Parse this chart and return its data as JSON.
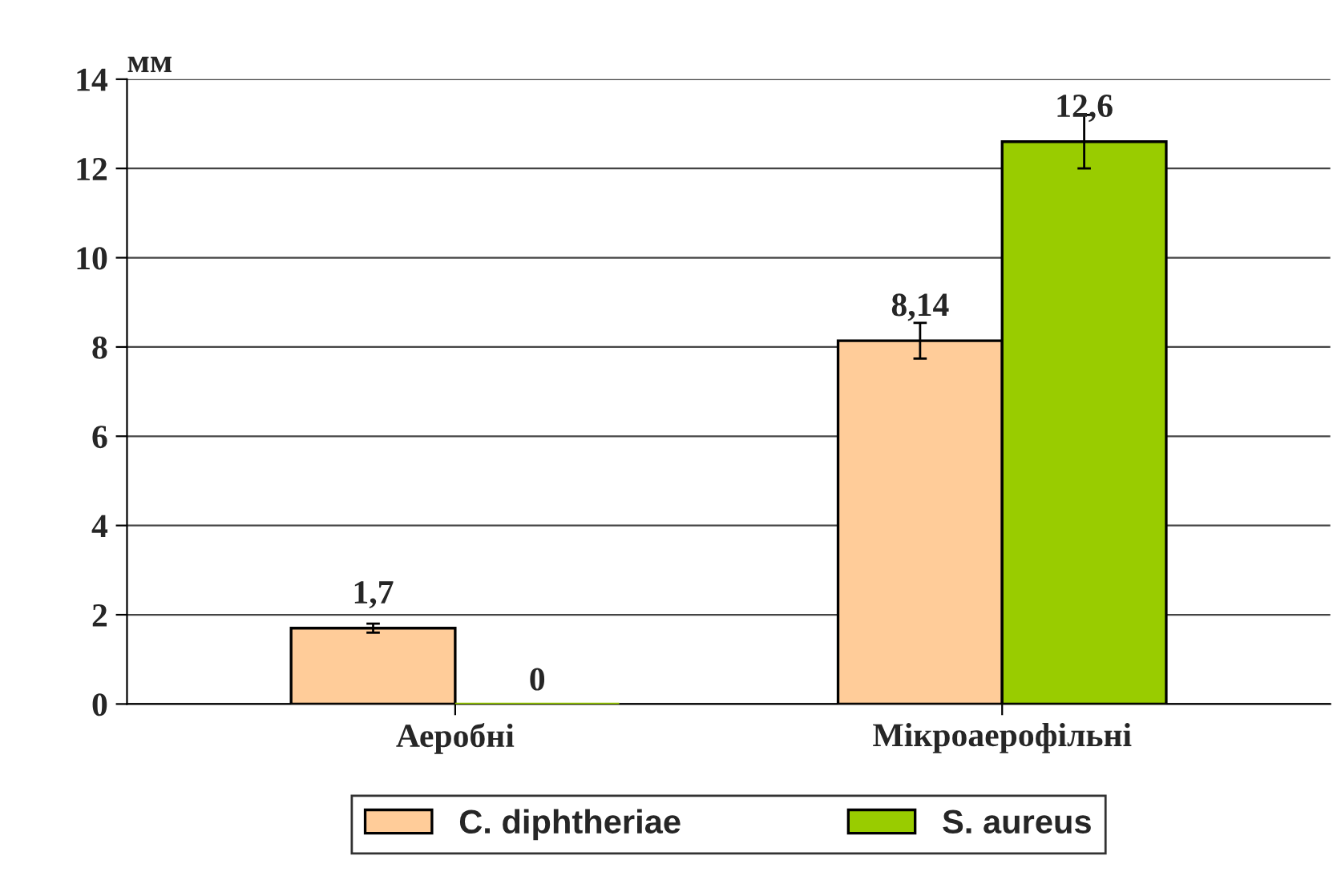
{
  "chart_data": {
    "type": "bar",
    "ylabel": "мм",
    "categories": [
      "Аеробні",
      "Мікроаерофільні"
    ],
    "series": [
      {
        "name": "C. diphtheriae",
        "color": "#ffcc99",
        "values": [
          1.7,
          8.14
        ],
        "errors": [
          0.1,
          0.4
        ],
        "value_labels": [
          "1,7",
          "8,14"
        ]
      },
      {
        "name": "S. aureus",
        "color": "#99cc00",
        "values": [
          0,
          12.6
        ],
        "errors": [
          null,
          0.6
        ],
        "value_labels": [
          "0",
          "12,6"
        ]
      }
    ],
    "ylim": [
      0,
      14
    ],
    "yticks": [
      0,
      2,
      4,
      6,
      8,
      10,
      12,
      14
    ],
    "grid": "y",
    "legend": "bottom"
  }
}
